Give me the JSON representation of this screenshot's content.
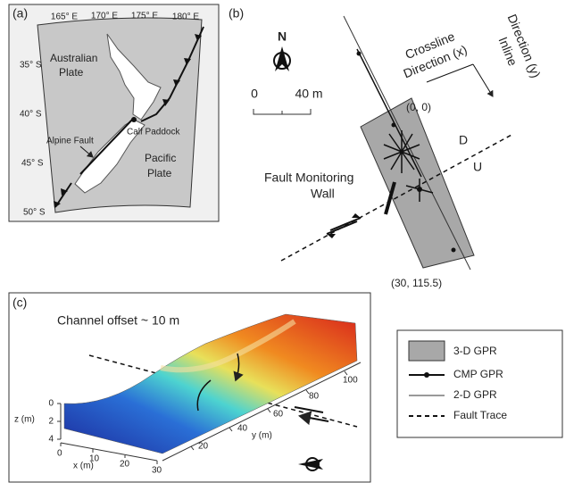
{
  "panel_a": {
    "label": "(a)",
    "lon_labels": [
      "165° E",
      "170° E",
      "175° E",
      "180° E"
    ],
    "lat_labels": [
      "35° S",
      "40° S",
      "45° S",
      "50° S"
    ],
    "australian_plate": [
      "Australian",
      "Plate"
    ],
    "pacific_plate": [
      "Pacific",
      "Plate"
    ],
    "alpine_fault": "Alpine Fault",
    "calf_paddock": "Calf Paddock"
  },
  "panel_b": {
    "label": "(b)",
    "north": "N",
    "scale_zero": "0",
    "scale_end": "40 m",
    "crossline": [
      "Crossline",
      "Direction (x)"
    ],
    "inline": [
      "Inline",
      "Direction (y)"
    ],
    "origin": "(0, 0)",
    "down": "D",
    "up": "U",
    "wall": [
      "Fault Monitoring",
      "Wall"
    ],
    "corner": "(30, 115.5)"
  },
  "panel_c": {
    "label": "(c)",
    "annotation": "Channel offset ~ 10 m",
    "z_label": "z (m)",
    "z_ticks": [
      0,
      2,
      4
    ],
    "x_label": "x (m)",
    "x_ticks": [
      0,
      10,
      20,
      30
    ],
    "y_label": "y (m)",
    "y_ticks": [
      20,
      40,
      60,
      80,
      100
    ]
  },
  "legend": [
    "3-D GPR",
    "CMP GPR",
    "2-D GPR",
    "Fault Trace"
  ]
}
